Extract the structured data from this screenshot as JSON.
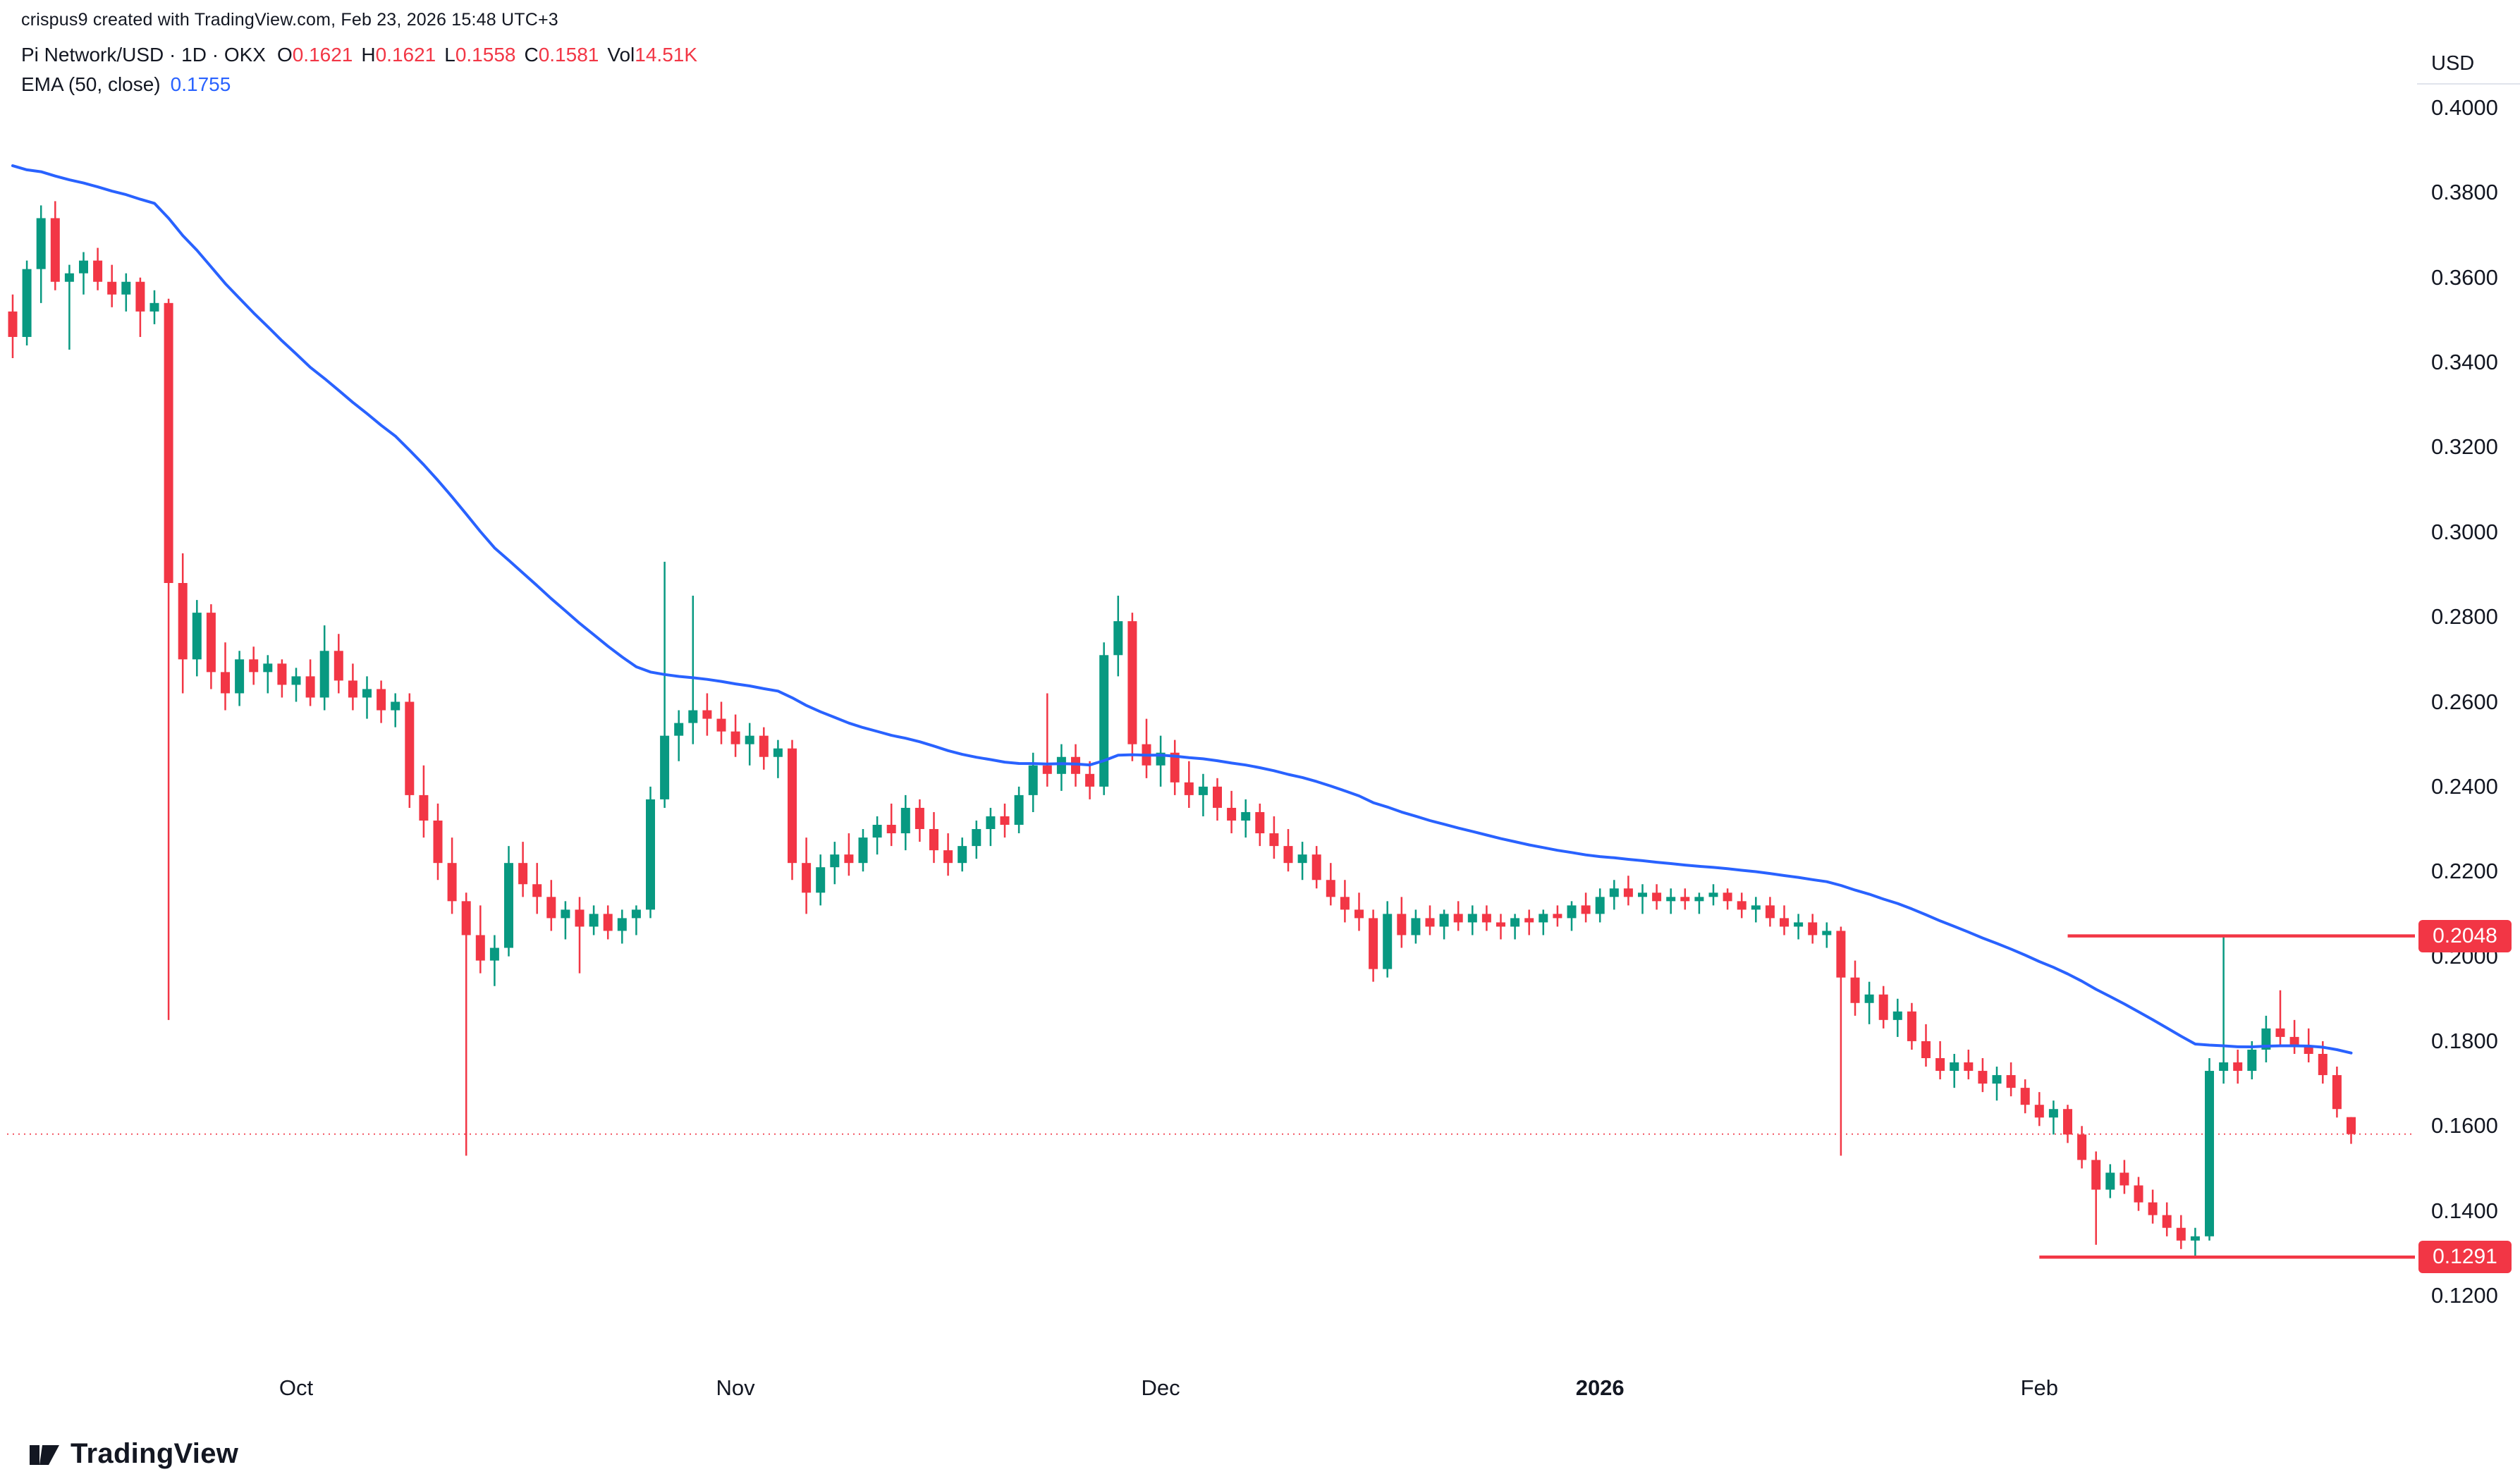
{
  "attribution": "crispus9 created with TradingView.com, Feb 23, 2026 15:48 UTC+3",
  "legend": {
    "title": "Pi Network/USD · 1D · OKX",
    "ohlc": [
      {
        "label": "O",
        "value": "0.1621"
      },
      {
        "label": "H",
        "value": "0.1621"
      },
      {
        "label": "L",
        "value": "0.1558"
      },
      {
        "label": "C",
        "value": "0.1581"
      }
    ],
    "vol_label": "Vol",
    "vol_value": "14.51K",
    "ema_label": "EMA (50, close)",
    "ema_value": "0.1755"
  },
  "price_axis": {
    "currency": "USD",
    "ticks": [
      "0.4000",
      "0.3800",
      "0.3600",
      "0.3400",
      "0.3200",
      "0.3000",
      "0.2800",
      "0.2600",
      "0.2400",
      "0.2200",
      "0.2000",
      "0.1800",
      "0.1600",
      "0.1400",
      "0.1200"
    ]
  },
  "footer": {
    "brand": "TradingView"
  },
  "colors": {
    "background": "#ffffff",
    "up": "#089981",
    "down": "#f23645",
    "ema": "#2962ff",
    "level": "#f23645",
    "badge": "#f23645",
    "text": "#131722"
  },
  "chart_data": {
    "type": "candlestick",
    "symbol": "Pi Network/USD",
    "interval": "1D",
    "exchange": "OKX",
    "current": {
      "open": 0.1621,
      "high": 0.1621,
      "low": 0.1558,
      "close": 0.1581,
      "volume": "14.51K"
    },
    "price_range": [
      0.12,
      0.4
    ],
    "x_ticks": [
      {
        "label": "Oct",
        "index": 20,
        "bold": false
      },
      {
        "label": "Nov",
        "index": 51,
        "bold": false
      },
      {
        "label": "Dec",
        "index": 81,
        "bold": false
      },
      {
        "label": "2026",
        "index": 112,
        "bold": true
      },
      {
        "label": "Feb",
        "index": 143,
        "bold": false
      }
    ],
    "ema": {
      "period": 50,
      "seed": 0.388,
      "last_value": 0.1755
    },
    "levels": [
      {
        "price": 0.2048,
        "label": "0.2048",
        "from_index": 145
      },
      {
        "price": 0.1291,
        "label": "0.1291",
        "from_index": 143
      }
    ],
    "current_price_line": 0.1581,
    "candles": [
      [
        0.352,
        0.356,
        0.341,
        0.346
      ],
      [
        0.346,
        0.364,
        0.344,
        0.362
      ],
      [
        0.362,
        0.377,
        0.354,
        0.374
      ],
      [
        0.374,
        0.378,
        0.357,
        0.359
      ],
      [
        0.359,
        0.363,
        0.343,
        0.361
      ],
      [
        0.361,
        0.366,
        0.356,
        0.364
      ],
      [
        0.364,
        0.367,
        0.357,
        0.359
      ],
      [
        0.359,
        0.363,
        0.353,
        0.356
      ],
      [
        0.356,
        0.361,
        0.352,
        0.359
      ],
      [
        0.359,
        0.36,
        0.346,
        0.352
      ],
      [
        0.352,
        0.357,
        0.349,
        0.354
      ],
      [
        0.354,
        0.355,
        0.185,
        0.288
      ],
      [
        0.288,
        0.295,
        0.262,
        0.27
      ],
      [
        0.27,
        0.284,
        0.266,
        0.281
      ],
      [
        0.281,
        0.283,
        0.263,
        0.267
      ],
      [
        0.267,
        0.274,
        0.258,
        0.262
      ],
      [
        0.262,
        0.272,
        0.259,
        0.27
      ],
      [
        0.27,
        0.273,
        0.264,
        0.267
      ],
      [
        0.267,
        0.271,
        0.262,
        0.269
      ],
      [
        0.269,
        0.27,
        0.261,
        0.264
      ],
      [
        0.264,
        0.268,
        0.26,
        0.266
      ],
      [
        0.266,
        0.27,
        0.259,
        0.261
      ],
      [
        0.261,
        0.278,
        0.258,
        0.272
      ],
      [
        0.272,
        0.276,
        0.262,
        0.265
      ],
      [
        0.265,
        0.269,
        0.258,
        0.261
      ],
      [
        0.261,
        0.266,
        0.256,
        0.263
      ],
      [
        0.263,
        0.265,
        0.255,
        0.258
      ],
      [
        0.258,
        0.262,
        0.254,
        0.26
      ],
      [
        0.26,
        0.262,
        0.235,
        0.238
      ],
      [
        0.238,
        0.245,
        0.228,
        0.232
      ],
      [
        0.232,
        0.236,
        0.218,
        0.222
      ],
      [
        0.222,
        0.228,
        0.21,
        0.213
      ],
      [
        0.213,
        0.215,
        0.153,
        0.205
      ],
      [
        0.205,
        0.212,
        0.196,
        0.199
      ],
      [
        0.199,
        0.205,
        0.193,
        0.202
      ],
      [
        0.202,
        0.226,
        0.2,
        0.222
      ],
      [
        0.222,
        0.227,
        0.214,
        0.217
      ],
      [
        0.217,
        0.222,
        0.21,
        0.214
      ],
      [
        0.214,
        0.218,
        0.206,
        0.209
      ],
      [
        0.209,
        0.213,
        0.204,
        0.211
      ],
      [
        0.211,
        0.214,
        0.196,
        0.207
      ],
      [
        0.207,
        0.212,
        0.205,
        0.21
      ],
      [
        0.21,
        0.212,
        0.204,
        0.206
      ],
      [
        0.206,
        0.211,
        0.203,
        0.209
      ],
      [
        0.209,
        0.212,
        0.205,
        0.211
      ],
      [
        0.211,
        0.24,
        0.209,
        0.237
      ],
      [
        0.237,
        0.293,
        0.235,
        0.252
      ],
      [
        0.252,
        0.258,
        0.246,
        0.255
      ],
      [
        0.255,
        0.285,
        0.25,
        0.258
      ],
      [
        0.258,
        0.262,
        0.252,
        0.256
      ],
      [
        0.256,
        0.26,
        0.25,
        0.253
      ],
      [
        0.253,
        0.257,
        0.247,
        0.25
      ],
      [
        0.25,
        0.255,
        0.245,
        0.252
      ],
      [
        0.252,
        0.254,
        0.244,
        0.247
      ],
      [
        0.247,
        0.251,
        0.242,
        0.249
      ],
      [
        0.249,
        0.251,
        0.218,
        0.222
      ],
      [
        0.222,
        0.228,
        0.21,
        0.215
      ],
      [
        0.215,
        0.224,
        0.212,
        0.221
      ],
      [
        0.221,
        0.227,
        0.217,
        0.224
      ],
      [
        0.224,
        0.229,
        0.219,
        0.222
      ],
      [
        0.222,
        0.23,
        0.22,
        0.228
      ],
      [
        0.228,
        0.233,
        0.224,
        0.231
      ],
      [
        0.231,
        0.236,
        0.226,
        0.229
      ],
      [
        0.229,
        0.238,
        0.225,
        0.235
      ],
      [
        0.235,
        0.237,
        0.227,
        0.23
      ],
      [
        0.23,
        0.234,
        0.222,
        0.225
      ],
      [
        0.225,
        0.229,
        0.219,
        0.222
      ],
      [
        0.222,
        0.228,
        0.22,
        0.226
      ],
      [
        0.226,
        0.232,
        0.223,
        0.23
      ],
      [
        0.23,
        0.235,
        0.226,
        0.233
      ],
      [
        0.233,
        0.236,
        0.228,
        0.231
      ],
      [
        0.231,
        0.24,
        0.229,
        0.238
      ],
      [
        0.238,
        0.248,
        0.234,
        0.245
      ],
      [
        0.245,
        0.262,
        0.24,
        0.243
      ],
      [
        0.243,
        0.25,
        0.239,
        0.247
      ],
      [
        0.247,
        0.25,
        0.24,
        0.243
      ],
      [
        0.243,
        0.246,
        0.237,
        0.24
      ],
      [
        0.24,
        0.274,
        0.238,
        0.271
      ],
      [
        0.271,
        0.285,
        0.266,
        0.279
      ],
      [
        0.279,
        0.281,
        0.246,
        0.25
      ],
      [
        0.25,
        0.256,
        0.242,
        0.245
      ],
      [
        0.245,
        0.252,
        0.24,
        0.248
      ],
      [
        0.248,
        0.251,
        0.238,
        0.241
      ],
      [
        0.241,
        0.246,
        0.235,
        0.238
      ],
      [
        0.238,
        0.243,
        0.233,
        0.24
      ],
      [
        0.24,
        0.242,
        0.232,
        0.235
      ],
      [
        0.235,
        0.239,
        0.229,
        0.232
      ],
      [
        0.232,
        0.237,
        0.228,
        0.234
      ],
      [
        0.234,
        0.236,
        0.226,
        0.229
      ],
      [
        0.229,
        0.233,
        0.223,
        0.226
      ],
      [
        0.226,
        0.23,
        0.22,
        0.222
      ],
      [
        0.222,
        0.227,
        0.218,
        0.224
      ],
      [
        0.224,
        0.226,
        0.216,
        0.218
      ],
      [
        0.218,
        0.222,
        0.212,
        0.214
      ],
      [
        0.214,
        0.218,
        0.208,
        0.211
      ],
      [
        0.211,
        0.215,
        0.206,
        0.209
      ],
      [
        0.209,
        0.211,
        0.194,
        0.197
      ],
      [
        0.197,
        0.213,
        0.195,
        0.21
      ],
      [
        0.21,
        0.214,
        0.202,
        0.205
      ],
      [
        0.205,
        0.211,
        0.203,
        0.209
      ],
      [
        0.209,
        0.212,
        0.205,
        0.207
      ],
      [
        0.207,
        0.211,
        0.204,
        0.21
      ],
      [
        0.21,
        0.213,
        0.206,
        0.208
      ],
      [
        0.208,
        0.212,
        0.205,
        0.21
      ],
      [
        0.21,
        0.212,
        0.206,
        0.208
      ],
      [
        0.208,
        0.21,
        0.204,
        0.207
      ],
      [
        0.207,
        0.21,
        0.204,
        0.209
      ],
      [
        0.209,
        0.211,
        0.205,
        0.208
      ],
      [
        0.208,
        0.211,
        0.205,
        0.21
      ],
      [
        0.21,
        0.212,
        0.207,
        0.209
      ],
      [
        0.209,
        0.213,
        0.206,
        0.212
      ],
      [
        0.212,
        0.215,
        0.208,
        0.21
      ],
      [
        0.21,
        0.216,
        0.208,
        0.214
      ],
      [
        0.214,
        0.218,
        0.211,
        0.216
      ],
      [
        0.216,
        0.219,
        0.212,
        0.214
      ],
      [
        0.214,
        0.217,
        0.21,
        0.215
      ],
      [
        0.215,
        0.217,
        0.211,
        0.213
      ],
      [
        0.213,
        0.216,
        0.21,
        0.214
      ],
      [
        0.214,
        0.216,
        0.211,
        0.213
      ],
      [
        0.213,
        0.215,
        0.21,
        0.214
      ],
      [
        0.214,
        0.217,
        0.212,
        0.215
      ],
      [
        0.215,
        0.216,
        0.211,
        0.213
      ],
      [
        0.213,
        0.215,
        0.209,
        0.211
      ],
      [
        0.211,
        0.214,
        0.208,
        0.212
      ],
      [
        0.212,
        0.214,
        0.207,
        0.209
      ],
      [
        0.209,
        0.212,
        0.205,
        0.207
      ],
      [
        0.207,
        0.21,
        0.204,
        0.208
      ],
      [
        0.208,
        0.21,
        0.203,
        0.205
      ],
      [
        0.205,
        0.208,
        0.202,
        0.206
      ],
      [
        0.206,
        0.207,
        0.153,
        0.195
      ],
      [
        0.195,
        0.199,
        0.186,
        0.189
      ],
      [
        0.189,
        0.194,
        0.184,
        0.191
      ],
      [
        0.191,
        0.193,
        0.183,
        0.185
      ],
      [
        0.185,
        0.19,
        0.181,
        0.187
      ],
      [
        0.187,
        0.189,
        0.178,
        0.18
      ],
      [
        0.18,
        0.184,
        0.174,
        0.176
      ],
      [
        0.176,
        0.18,
        0.171,
        0.173
      ],
      [
        0.173,
        0.177,
        0.169,
        0.175
      ],
      [
        0.175,
        0.178,
        0.171,
        0.173
      ],
      [
        0.173,
        0.176,
        0.168,
        0.17
      ],
      [
        0.17,
        0.174,
        0.166,
        0.172
      ],
      [
        0.172,
        0.175,
        0.167,
        0.169
      ],
      [
        0.169,
        0.171,
        0.163,
        0.165
      ],
      [
        0.165,
        0.168,
        0.16,
        0.162
      ],
      [
        0.162,
        0.166,
        0.158,
        0.164
      ],
      [
        0.164,
        0.165,
        0.156,
        0.158
      ],
      [
        0.158,
        0.16,
        0.15,
        0.152
      ],
      [
        0.152,
        0.154,
        0.132,
        0.145
      ],
      [
        0.145,
        0.151,
        0.143,
        0.149
      ],
      [
        0.149,
        0.152,
        0.144,
        0.146
      ],
      [
        0.146,
        0.148,
        0.14,
        0.142
      ],
      [
        0.142,
        0.145,
        0.137,
        0.139
      ],
      [
        0.139,
        0.142,
        0.134,
        0.136
      ],
      [
        0.136,
        0.139,
        0.131,
        0.133
      ],
      [
        0.133,
        0.136,
        0.129,
        0.134
      ],
      [
        0.134,
        0.176,
        0.133,
        0.173
      ],
      [
        0.173,
        0.205,
        0.17,
        0.175
      ],
      [
        0.175,
        0.178,
        0.17,
        0.173
      ],
      [
        0.173,
        0.18,
        0.171,
        0.178
      ],
      [
        0.178,
        0.186,
        0.175,
        0.183
      ],
      [
        0.183,
        0.192,
        0.179,
        0.181
      ],
      [
        0.181,
        0.185,
        0.177,
        0.179
      ],
      [
        0.179,
        0.183,
        0.175,
        0.177
      ],
      [
        0.177,
        0.18,
        0.17,
        0.172
      ],
      [
        0.172,
        0.174,
        0.162,
        0.164
      ],
      [
        0.1621,
        0.1621,
        0.1558,
        0.1581
      ]
    ]
  }
}
